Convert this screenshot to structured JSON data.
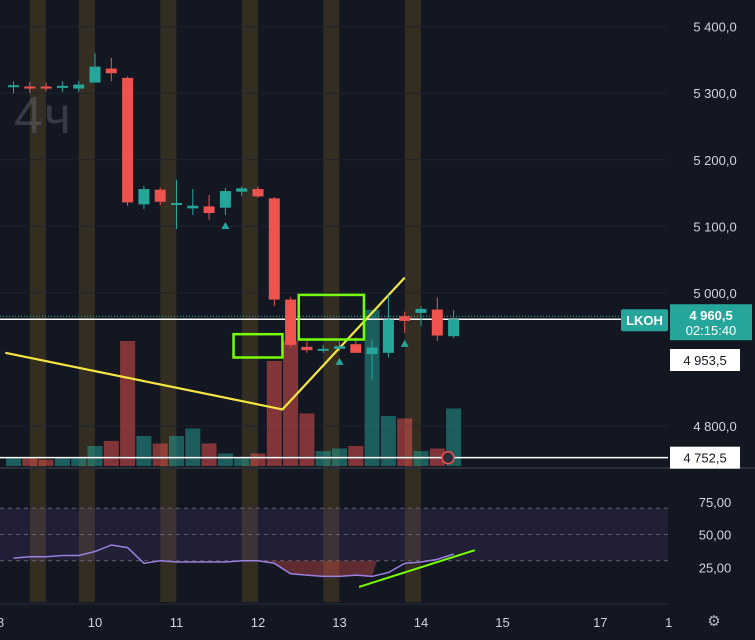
{
  "symbol": "LKOH",
  "timeframe": "4ч",
  "price_axis": {
    "labels": [
      "5 400,0",
      "5 300,0",
      "5 200,0",
      "5 100,0",
      "5 000,0",
      "4 800,0"
    ]
  },
  "rsi_axis": {
    "labels": [
      "75,00",
      "50,00",
      "25,00"
    ]
  },
  "time_axis": {
    "labels": [
      "8",
      "10",
      "11",
      "12",
      "13",
      "14",
      "15",
      "17",
      "1"
    ]
  },
  "current_price": {
    "value": "4 960,5",
    "countdown": "02:15:40"
  },
  "level_tags": {
    "upper": "4 953,5",
    "lower": "4 752,5"
  },
  "colors": {
    "background": "#131722",
    "up": "#26a69a",
    "down": "#ef5350",
    "trendline": "#f5e642",
    "box": "#76ff03",
    "rsi_line": "#9c7fe0",
    "session": "#3b3222"
  },
  "chart_data": {
    "type": "candlestick",
    "title": "LKOH 4ч",
    "ylim": [
      4740,
      5440
    ],
    "yticks": [
      5400,
      5300,
      5200,
      5100,
      5000,
      4800
    ],
    "x_ticks": [
      "8",
      "10",
      "11",
      "12",
      "13",
      "14",
      "15",
      "17",
      "1"
    ],
    "candles": [
      {
        "o": 5310,
        "h": 5318,
        "l": 5300,
        "c": 5312
      },
      {
        "o": 5310,
        "h": 5317,
        "l": 5300,
        "c": 5308
      },
      {
        "o": 5310,
        "h": 5316,
        "l": 5303,
        "c": 5307
      },
      {
        "o": 5308,
        "h": 5318,
        "l": 5302,
        "c": 5311
      },
      {
        "o": 5307,
        "h": 5318,
        "l": 5302,
        "c": 5313
      },
      {
        "o": 5316,
        "h": 5360,
        "l": 5316,
        "c": 5340
      },
      {
        "o": 5337,
        "h": 5353,
        "l": 5318,
        "c": 5330
      },
      {
        "o": 5323,
        "h": 5325,
        "l": 5131,
        "c": 5136
      },
      {
        "o": 5133,
        "h": 5161,
        "l": 5126,
        "c": 5156
      },
      {
        "o": 5155,
        "h": 5158,
        "l": 5132,
        "c": 5137
      },
      {
        "o": 5133,
        "h": 5170,
        "l": 5096,
        "c": 5135
      },
      {
        "o": 5127,
        "h": 5156,
        "l": 5117,
        "c": 5131
      },
      {
        "o": 5130,
        "h": 5147,
        "l": 5110,
        "c": 5120
      },
      {
        "o": 5128,
        "h": 5158,
        "l": 5117,
        "c": 5153
      },
      {
        "o": 5152,
        "h": 5160,
        "l": 5145,
        "c": 5157
      },
      {
        "o": 5156,
        "h": 5160,
        "l": 5143,
        "c": 5145
      },
      {
        "o": 5142,
        "h": 5144,
        "l": 4980,
        "c": 4990
      },
      {
        "o": 4990,
        "h": 4994,
        "l": 4918,
        "c": 4922
      },
      {
        "o": 4919,
        "h": 4927,
        "l": 4910,
        "c": 4914
      },
      {
        "o": 4915,
        "h": 4922,
        "l": 4910,
        "c": 4916
      },
      {
        "o": 4916,
        "h": 4927,
        "l": 4913,
        "c": 4920
      },
      {
        "o": 4923,
        "h": 4933,
        "l": 4910,
        "c": 4910
      },
      {
        "o": 4908,
        "h": 4930,
        "l": 4870,
        "c": 4918
      },
      {
        "o": 4910,
        "h": 4997,
        "l": 4903,
        "c": 4960
      },
      {
        "o": 4965,
        "h": 4972,
        "l": 4940,
        "c": 4958
      },
      {
        "o": 4970,
        "h": 4980,
        "l": 4950,
        "c": 4976
      },
      {
        "o": 4975,
        "h": 4993,
        "l": 4928,
        "c": 4936
      },
      {
        "o": 4935,
        "h": 4974,
        "l": 4932,
        "c": 4960.5
      }
    ],
    "volume": [
      6,
      6,
      5,
      6,
      6,
      16,
      20,
      100,
      24,
      18,
      24,
      30,
      18,
      10,
      6,
      10,
      84,
      100,
      42,
      12,
      14,
      16,
      125,
      40,
      38,
      12,
      14,
      46
    ],
    "volume_max": 140,
    "signals_up_at": [
      13,
      20,
      24
    ],
    "rsi": {
      "ylim": [
        0,
        100
      ],
      "levels": [
        70,
        50,
        30
      ],
      "values": [
        32,
        33,
        33,
        34,
        34,
        37,
        42,
        40,
        28,
        30,
        29,
        29,
        29,
        29,
        30,
        30,
        28,
        20,
        19,
        18,
        18,
        19,
        18,
        21,
        28,
        29,
        31,
        35
      ]
    },
    "trendline": {
      "points": [
        [
          -0.5,
          4910
        ],
        [
          16.5,
          4825
        ],
        [
          24,
          5023
        ]
      ]
    },
    "boxes": [
      {
        "from": 13.5,
        "to": 16.5,
        "low": 4903,
        "high": 4938
      },
      {
        "from": 17.5,
        "to": 21.5,
        "low": 4930,
        "high": 4997
      }
    ],
    "horizontal_levels": [
      4960.5,
      4752.5
    ]
  }
}
